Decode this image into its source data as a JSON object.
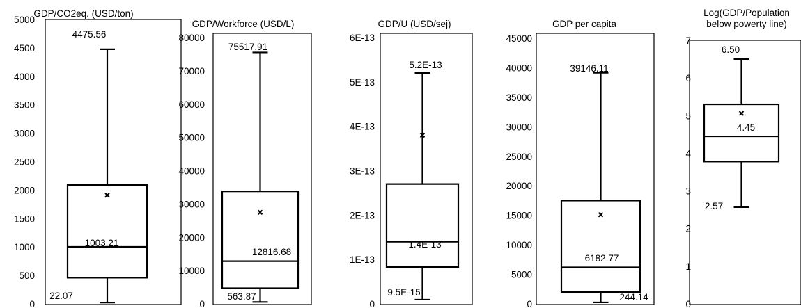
{
  "chart_data": [
    {
      "type": "box",
      "title": "GDP/CO2eq. (USD/ton)",
      "ylim": [
        0,
        5000
      ],
      "yticks": [
        "0",
        "500",
        "1000",
        "1500",
        "2000",
        "2500",
        "3000",
        "3500",
        "4000",
        "4500",
        "5000"
      ],
      "box": {
        "min": 22.07,
        "q1": 460,
        "median": 1003.21,
        "q3": 2090,
        "max": 4475.56,
        "mean": 1910
      },
      "labels": {
        "max": "4475.56",
        "median": "1003.21",
        "min": "22.07"
      }
    },
    {
      "type": "box",
      "title": "GDP/Workforce (USD/L)",
      "ylim": [
        0,
        80000
      ],
      "yticks": [
        "0",
        "10000",
        "20000",
        "30000",
        "40000",
        "50000",
        "60000",
        "70000",
        "80000"
      ],
      "box": {
        "min": 563.87,
        "q1": 4700,
        "median": 12816.68,
        "q3": 33800,
        "max": 75517.91,
        "mean": 27500
      },
      "labels": {
        "max": "75517.91",
        "median": "12816.68",
        "min": "563.87"
      }
    },
    {
      "type": "box",
      "title": "GDP/U (USD/sej)",
      "ylim": [
        0,
        6e-13
      ],
      "yticks": [
        "0",
        "1E-13",
        "2E-13",
        "3E-13",
        "4E-13",
        "5E-13",
        "6E-13"
      ],
      "box": {
        "min": 9.5e-15,
        "q1": 8.3e-14,
        "median": 1.4e-13,
        "q3": 2.7e-13,
        "max": 5.2e-13,
        "mean": 3.8e-13
      },
      "labels": {
        "max": "5.2E-13",
        "median": "1.4E-13",
        "min": "9.5E-15"
      }
    },
    {
      "type": "box",
      "title": "GDP per capita",
      "ylim": [
        0,
        45000
      ],
      "yticks": [
        "0",
        "5000",
        "10000",
        "15000",
        "20000",
        "25000",
        "30000",
        "35000",
        "40000",
        "45000"
      ],
      "box": {
        "min": 244.14,
        "q1": 2000,
        "median": 6182.77,
        "q3": 17500,
        "max": 39146.11,
        "mean": 15100
      },
      "labels": {
        "max": "39146.11",
        "median": "6182.77",
        "min": "244.14"
      }
    },
    {
      "type": "box",
      "title": "Log(GDP/Population below powerty line)",
      "ylim": [
        0,
        7
      ],
      "yticks": [
        "0",
        "1",
        "2",
        "3",
        "4",
        "5",
        "6",
        "7"
      ],
      "box": {
        "min": 2.57,
        "q1": 3.78,
        "median": 4.45,
        "q3": 5.3,
        "max": 6.5,
        "mean": 5.06
      },
      "labels": {
        "max": "6.50",
        "median": "4.45",
        "min": "2.57"
      }
    }
  ]
}
